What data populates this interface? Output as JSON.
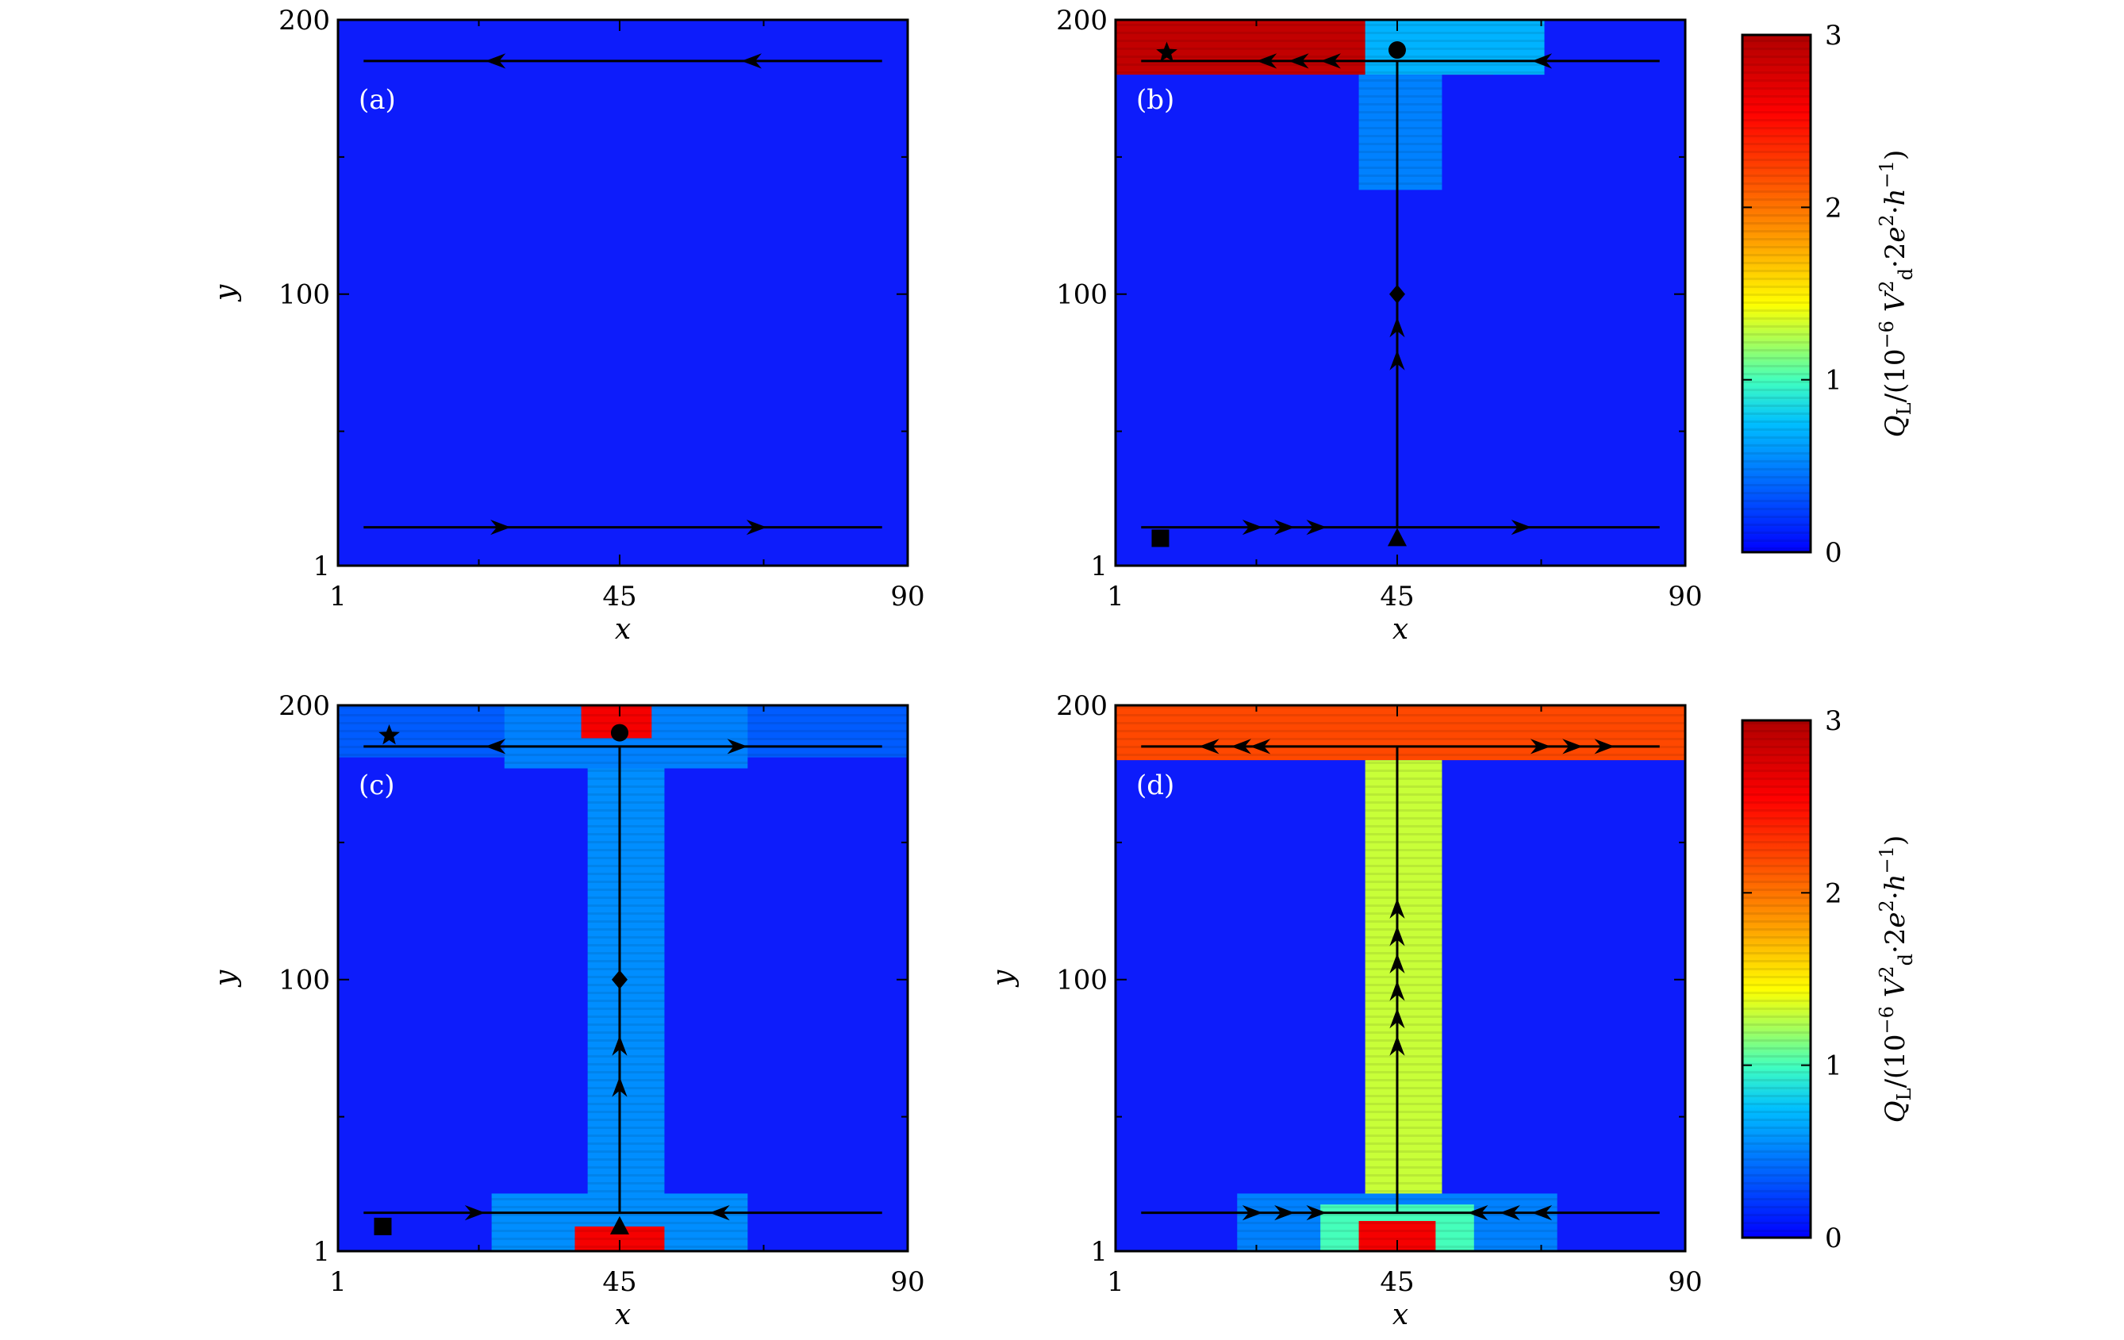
{
  "chart_data": [
    {
      "panel": "(a)",
      "type": "heatmap",
      "xlabel": "x",
      "ylabel": "y",
      "xticks": [
        "1",
        "45",
        "90"
      ],
      "yticks": [
        "1",
        "100",
        "200"
      ],
      "xlim": [
        1,
        90
      ],
      "ylim": [
        1,
        200
      ],
      "regions": [],
      "paths": [
        {
          "from": [
            5,
            185
          ],
          "to": [
            86,
            185
          ],
          "direction": "left",
          "arrows_at": [
            26,
            66
          ]
        },
        {
          "from": [
            5,
            15
          ],
          "to": [
            86,
            15
          ],
          "direction": "right",
          "arrows_at": [
            26,
            66
          ]
        }
      ],
      "markers": []
    },
    {
      "panel": "(b)",
      "type": "heatmap",
      "xlabel": "x",
      "ylabel": "",
      "xticks": [
        "1",
        "45",
        "90"
      ],
      "yticks": [
        "1",
        "100",
        "200"
      ],
      "xlim": [
        1,
        90
      ],
      "ylim": [
        1,
        200
      ],
      "regions": [
        {
          "x": [
            1,
            60
          ],
          "y": [
            180,
            200
          ],
          "level": 2.9
        },
        {
          "x": [
            40,
            68
          ],
          "y": [
            180,
            200
          ],
          "level": 0.7
        },
        {
          "x": [
            39,
            52
          ],
          "y": [
            138,
            180
          ],
          "level": 0.5
        }
      ],
      "paths": [
        {
          "from": [
            5,
            185
          ],
          "to": [
            86,
            185
          ],
          "direction": "left",
          "arrows_at": [
            25,
            30,
            35,
            68
          ]
        },
        {
          "from": [
            5,
            15
          ],
          "to": [
            86,
            15
          ],
          "direction": "right",
          "arrows_at": [
            22,
            27,
            32,
            64
          ]
        },
        {
          "from": [
            45,
            15
          ],
          "to": [
            45,
            185
          ],
          "direction": "up",
          "arrows_at": [
            75,
            87
          ]
        }
      ],
      "markers": [
        {
          "shape": "star",
          "x": 9,
          "y": 188
        },
        {
          "shape": "circle",
          "x": 45,
          "y": 189
        },
        {
          "shape": "diamond",
          "x": 45,
          "y": 100
        },
        {
          "shape": "triangle",
          "x": 45,
          "y": 11
        },
        {
          "shape": "square",
          "x": 8,
          "y": 11
        }
      ]
    },
    {
      "panel": "(c)",
      "type": "heatmap",
      "xlabel": "x",
      "ylabel": "y",
      "xticks": [
        "1",
        "45",
        "90"
      ],
      "yticks": [
        "1",
        "100",
        "200"
      ],
      "xlim": [
        1,
        90
      ],
      "ylim": [
        1,
        200
      ],
      "regions": [
        {
          "x": [
            1,
            90
          ],
          "y": [
            181,
            200
          ],
          "level": 0.35
        },
        {
          "x": [
            27,
            65
          ],
          "y": [
            177,
            200
          ],
          "level": 0.5
        },
        {
          "x": [
            40,
            52
          ],
          "y": [
            17,
            177
          ],
          "level": 0.55
        },
        {
          "x": [
            25,
            65
          ],
          "y": [
            1,
            22
          ],
          "level": 0.55
        },
        {
          "x": [
            39,
            50
          ],
          "y": [
            188,
            200
          ],
          "level": 2.6
        },
        {
          "x": [
            38,
            52
          ],
          "y": [
            1,
            10
          ],
          "level": 2.6
        }
      ],
      "paths": [
        {
          "from": [
            5,
            185
          ],
          "to": [
            86,
            185
          ],
          "direction": "outward",
          "arrows_at": [
            26,
            63
          ]
        },
        {
          "from": [
            5,
            15
          ],
          "to": [
            86,
            15
          ],
          "direction": "inward",
          "arrows_at": [
            22,
            61
          ]
        },
        {
          "from": [
            45,
            15
          ],
          "to": [
            45,
            185
          ],
          "direction": "up",
          "arrows_at": [
            60,
            75
          ]
        }
      ],
      "markers": [
        {
          "shape": "star",
          "x": 9,
          "y": 189
        },
        {
          "shape": "circle",
          "x": 45,
          "y": 190
        },
        {
          "shape": "diamond",
          "x": 45,
          "y": 100
        },
        {
          "shape": "triangle",
          "x": 45,
          "y": 10
        },
        {
          "shape": "square",
          "x": 8,
          "y": 10
        }
      ]
    },
    {
      "panel": "(d)",
      "type": "heatmap",
      "xlabel": "x",
      "ylabel": "y",
      "xticks": [
        "1",
        "45",
        "90"
      ],
      "yticks": [
        "1",
        "100",
        "200"
      ],
      "xlim": [
        1,
        90
      ],
      "ylim": [
        1,
        200
      ],
      "regions": [
        {
          "x": [
            1,
            90
          ],
          "y": [
            180,
            200
          ],
          "level": 2.2
        },
        {
          "x": [
            40,
            52
          ],
          "y": [
            17,
            180
          ],
          "level": 1.3
        },
        {
          "x": [
            20,
            70
          ],
          "y": [
            1,
            22
          ],
          "level": 0.5
        },
        {
          "x": [
            33,
            57
          ],
          "y": [
            1,
            18
          ],
          "level": 1.0
        },
        {
          "x": [
            39,
            51
          ],
          "y": [
            1,
            12
          ],
          "level": 2.6
        }
      ],
      "paths": [
        {
          "from": [
            5,
            185
          ],
          "to": [
            86,
            185
          ],
          "direction": "outward",
          "arrows_at": [
            16,
            21,
            24,
            67,
            72,
            77
          ]
        },
        {
          "from": [
            5,
            15
          ],
          "to": [
            86,
            15
          ],
          "direction": "inward",
          "arrows_at": [
            22,
            27,
            32,
            58,
            63,
            68
          ]
        },
        {
          "from": [
            45,
            15
          ],
          "to": [
            45,
            185
          ],
          "direction": "up",
          "arrows_at": [
            75,
            85,
            95,
            105,
            115,
            125
          ]
        }
      ],
      "markers": []
    }
  ],
  "colorbar": {
    "ticks": [
      "0",
      "1",
      "2",
      "3"
    ],
    "range": [
      0,
      3
    ],
    "label": "Q_L/(10^-6 V_d^2·2e^2·h^-1)",
    "label_parts": {
      "q": "Q",
      "q_sub": "L",
      "paren_open": "/(10",
      "exp1": "−6",
      "v": "V",
      "v_sup": "2",
      "v_sub": "d",
      "mid": "·2",
      "e": "e",
      "e_sup": "2",
      "dot": "·",
      "h": "h",
      "h_sup": "−1",
      "close": ")"
    }
  },
  "colors": {
    "background": "#0d1cfb",
    "jet": [
      "#00007f",
      "#0000ff",
      "#007fff",
      "#00ffff",
      "#7fff7f",
      "#ffff00",
      "#ff7f00",
      "#ff0000",
      "#7f0000"
    ]
  }
}
